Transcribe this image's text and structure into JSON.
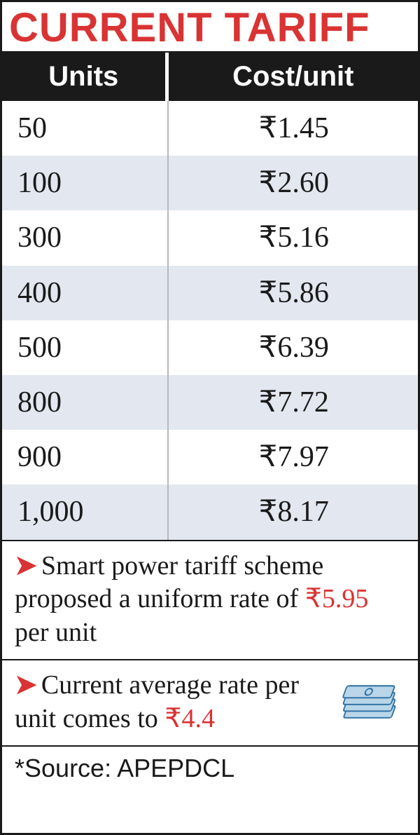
{
  "title": "CURRENT TARIFF",
  "columns": {
    "units": "Units",
    "cost": "Cost/unit"
  },
  "rows": [
    {
      "units": "50",
      "cost": "₹1.45"
    },
    {
      "units": "100",
      "cost": "₹2.60"
    },
    {
      "units": "300",
      "cost": "₹5.16"
    },
    {
      "units": "400",
      "cost": "₹5.86"
    },
    {
      "units": "500",
      "cost": "₹6.39"
    },
    {
      "units": "800",
      "cost": "₹7.72"
    },
    {
      "units": "900",
      "cost": "₹7.97"
    },
    {
      "units": "1,000",
      "cost": "₹8.17"
    }
  ],
  "notes": {
    "n1_pre": "Smart power tariff scheme proposed a uniform rate of ",
    "n1_hl": "₹5.95",
    "n1_post": " per unit",
    "n2_pre": "Current average rate per unit comes to ",
    "n2_hl": "₹4.4"
  },
  "source": "*Source: APEPDCL",
  "colors": {
    "accent_red": "#d93333",
    "header_bg": "#1a1a1a",
    "row_alt": "#e2e7f0",
    "money_fill": "#b9d5e8",
    "money_stroke": "#2b6fa3"
  },
  "row_alt_indices": [
    1,
    3,
    5,
    7
  ]
}
